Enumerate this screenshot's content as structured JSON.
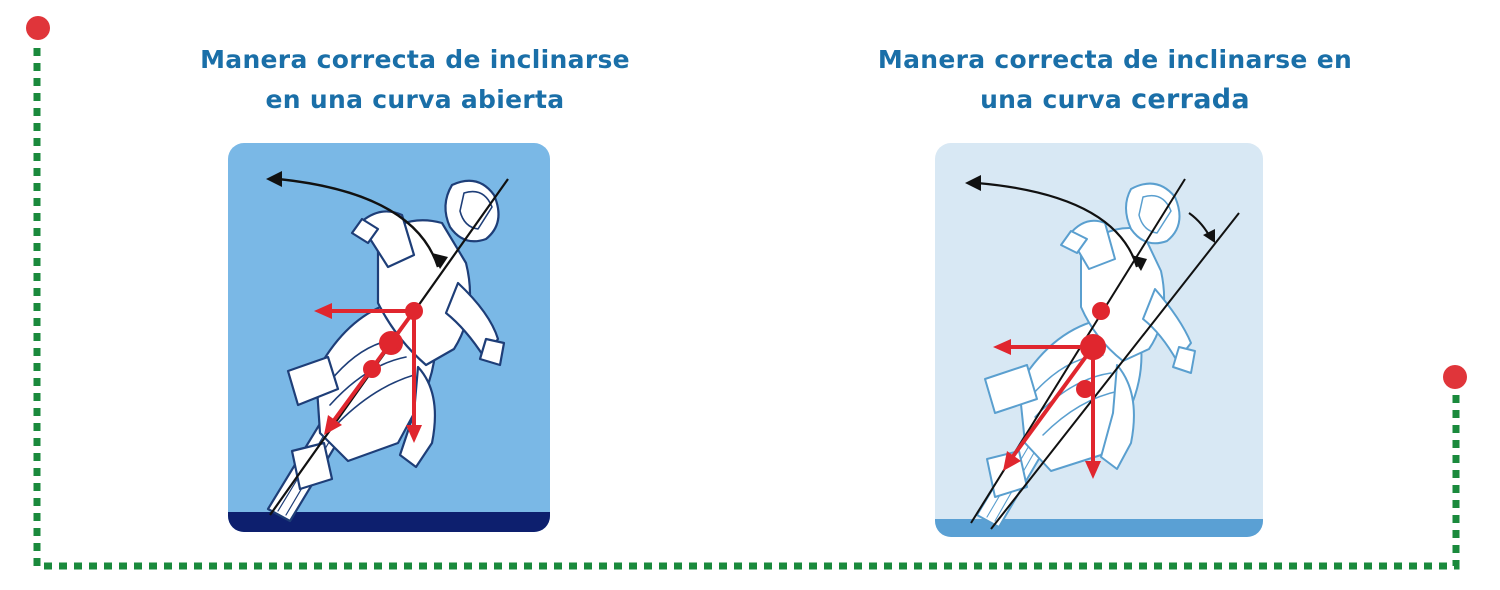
{
  "frame": {
    "line_color": "#1a8a3c",
    "dot_color": "#e0353a"
  },
  "left": {
    "caption_line1": "Manera correcta de inclinarse",
    "caption_line2": "en una curva abierta",
    "background": "#7ab8e6",
    "ground": "#0d1f6e",
    "illustration": "motorcycle-rider-lean-illustration"
  },
  "right": {
    "caption_line1": "Manera correcta de inclinarse en",
    "caption_line2": "una curva",
    "caption_emphasis": "cerrada",
    "background": "#d8e8f4",
    "ground": "#5aa0d4",
    "illustration": "motorcycle-rider-lean-illustration"
  },
  "force_color": "#e0262e"
}
